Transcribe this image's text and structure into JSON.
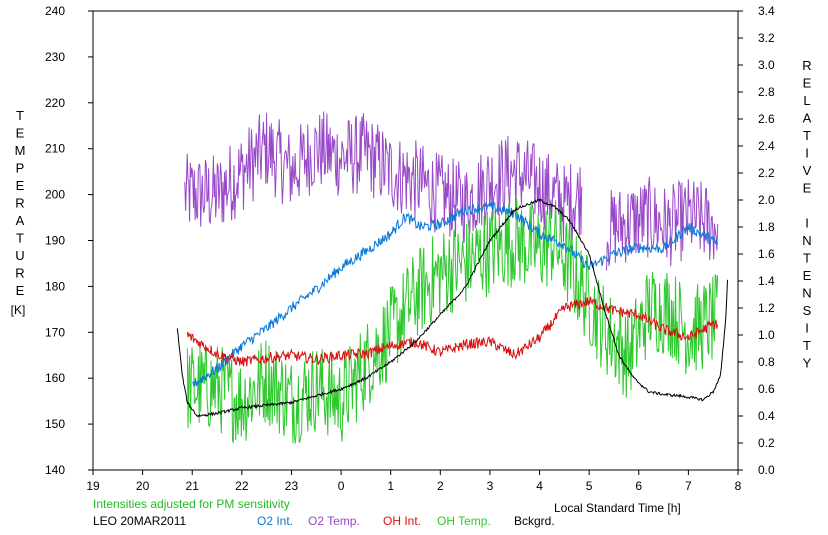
{
  "chart_data": {
    "type": "line",
    "y_left_label": "TEMPERATURE",
    "y_left_unit": "[K]",
    "y_right_label": "RELATIVE INTENSITY",
    "xlabel": "Local Standard Time [h]",
    "note": "Intensities adjusted for PM sensitivity",
    "site_date": "LEO 20MAR2011",
    "x_ticks": [
      "19",
      "20",
      "21",
      "22",
      "23",
      "0",
      "1",
      "2",
      "3",
      "4",
      "5",
      "6",
      "7",
      "8"
    ],
    "y_left_ticks": [
      "140",
      "150",
      "160",
      "170",
      "180",
      "190",
      "200",
      "210",
      "220",
      "230",
      "240"
    ],
    "y_right_ticks": [
      "0.0",
      "0.2",
      "0.4",
      "0.6",
      "0.8",
      "1.0",
      "1.2",
      "1.4",
      "1.6",
      "1.8",
      "2.0",
      "2.2",
      "2.4",
      "2.6",
      "2.8",
      "3.0",
      "3.2",
      "3.4"
    ],
    "xlim": [
      19,
      32
    ],
    "ylim_left": [
      140,
      240
    ],
    "ylim_right": [
      0,
      3.4
    ],
    "grid": false,
    "legend_position": "bottom",
    "series": [
      {
        "name": "O2 Int.",
        "axis": "right",
        "color": "#0a78d8",
        "noise": 0.04,
        "x": [
          21.0,
          21.5,
          22.0,
          22.5,
          23.0,
          23.5,
          24.0,
          24.5,
          25.0,
          25.3,
          25.6,
          26.0,
          26.5,
          27.0,
          27.5,
          28.0,
          28.5,
          29.0,
          29.5,
          30.0,
          30.5,
          31.0,
          31.5,
          31.6
        ],
        "y": [
          0.63,
          0.75,
          0.92,
          1.05,
          1.2,
          1.34,
          1.5,
          1.62,
          1.75,
          1.88,
          1.8,
          1.82,
          1.93,
          1.95,
          1.9,
          1.75,
          1.67,
          1.5,
          1.6,
          1.65,
          1.64,
          1.8,
          1.7,
          1.67
        ]
      },
      {
        "name": "O2 Temp.",
        "axis": "left",
        "color": "#9848c8",
        "noise": 9,
        "segments": [
          [
            20.85,
            28.85
          ],
          [
            29.35,
            31.6
          ]
        ],
        "x": [
          20.85,
          21.5,
          22.0,
          22.5,
          23.0,
          23.5,
          24.0,
          24.5,
          25.0,
          25.5,
          26.0,
          26.5,
          27.0,
          27.5,
          28.0,
          28.5,
          28.85,
          29.35,
          29.8,
          30.2,
          30.6,
          31.0,
          31.6
        ],
        "y": [
          200,
          200,
          205,
          210,
          205,
          210,
          208,
          209,
          205,
          203,
          200,
          198,
          203,
          205,
          202,
          198,
          200,
          192,
          194,
          195,
          193,
          195,
          193
        ]
      },
      {
        "name": "OH Int.",
        "axis": "right",
        "color": "#d81010",
        "noise": 0.04,
        "x": [
          20.9,
          21.5,
          22.0,
          22.5,
          23.0,
          23.5,
          24.0,
          24.5,
          25.0,
          25.5,
          26.0,
          26.5,
          27.0,
          27.5,
          28.0,
          28.5,
          29.0,
          29.5,
          30.0,
          30.5,
          31.0,
          31.5,
          31.6
        ],
        "y": [
          1.0,
          0.86,
          0.8,
          0.83,
          0.85,
          0.82,
          0.85,
          0.86,
          0.92,
          0.95,
          0.87,
          0.93,
          0.95,
          0.85,
          0.98,
          1.2,
          1.25,
          1.18,
          1.15,
          1.04,
          0.98,
          1.08,
          1.08
        ]
      },
      {
        "name": "OH Temp.",
        "axis": "left",
        "color": "#2cc82c",
        "noise": 10,
        "x": [
          20.9,
          21.5,
          22.0,
          22.5,
          23.0,
          23.5,
          24.0,
          24.5,
          25.0,
          25.5,
          26.0,
          26.5,
          27.0,
          27.5,
          28.0,
          28.3,
          29.35,
          29.8,
          30.2,
          30.6,
          31.0,
          31.6
        ],
        "y": [
          158,
          158,
          155,
          160,
          155,
          158,
          155,
          163,
          170,
          178,
          183,
          185,
          188,
          190,
          188,
          190,
          170,
          165,
          175,
          175,
          170,
          173
        ]
      },
      {
        "name": "Bckgrd.",
        "axis": "right",
        "color": "#000000",
        "noise": 0.01,
        "x": [
          20.7,
          20.8,
          20.9,
          21.1,
          21.5,
          22.0,
          22.5,
          23.0,
          23.5,
          24.0,
          24.5,
          25.0,
          25.5,
          26.0,
          26.5,
          27.0,
          27.5,
          28.0,
          28.3,
          28.6,
          29.0,
          29.3,
          29.6,
          29.9,
          30.2,
          30.5,
          30.8,
          31.0,
          31.3,
          31.5,
          31.65,
          31.75,
          31.8
        ],
        "y": [
          1.05,
          0.7,
          0.5,
          0.4,
          0.42,
          0.46,
          0.48,
          0.5,
          0.55,
          0.6,
          0.68,
          0.8,
          0.95,
          1.15,
          1.35,
          1.7,
          1.93,
          2.0,
          1.95,
          1.85,
          1.6,
          1.2,
          0.85,
          0.68,
          0.58,
          0.56,
          0.55,
          0.54,
          0.52,
          0.58,
          0.7,
          1.1,
          1.5
        ]
      }
    ]
  }
}
